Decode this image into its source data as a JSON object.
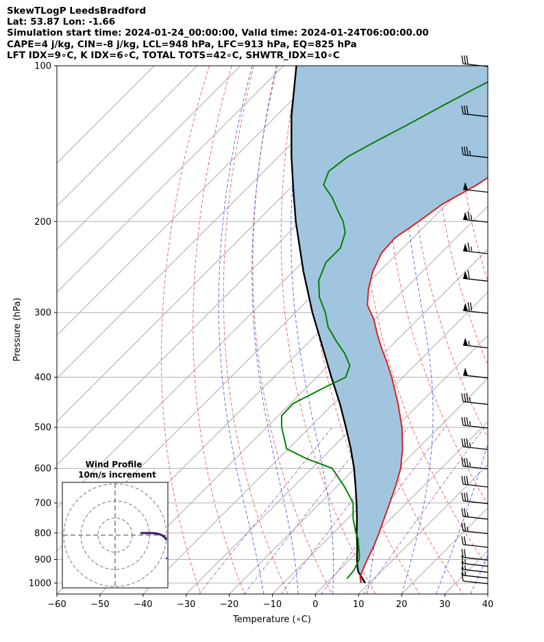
{
  "header": {
    "line1": "SkewTLogP LeedsBradford",
    "line2": "Lat: 53.87   Lon: -1.66",
    "line3": "Simulation start time: 2024-01-24_00:00:00, Valid time: 2024-01-24T06:00:00.00",
    "line4": "CAPE=4 j/kg, CIN=-8 j/kg, LCL=948 hPa, LFC=913 hPa, EQ=825 hPa",
    "line5": "LFT IDX=9∘C, K IDX=6∘C, TOTAL TOTS=42∘C, SHWTR_IDX=10∘C"
  },
  "chart_data": {
    "type": "line",
    "subtype": "skew-t log-p diagram",
    "xlabel": "Temperature (∘C)",
    "ylabel": "Pressure (hPa)",
    "xlim": [
      -60,
      40
    ],
    "ylim_hpa": [
      1050,
      100
    ],
    "y_scale": "log",
    "x_ticks": [
      "−60",
      "−50",
      "−40",
      "−30",
      "−20",
      "−10",
      "0",
      "10",
      "20",
      "30",
      "40"
    ],
    "x_tick_values": [
      -60,
      -50,
      -40,
      -30,
      -20,
      -10,
      0,
      10,
      20,
      30,
      40
    ],
    "y_ticks": [
      "100",
      "200",
      "300",
      "400",
      "500",
      "600",
      "700",
      "800",
      "900",
      "1000"
    ],
    "y_tick_values": [
      100,
      200,
      300,
      400,
      500,
      600,
      700,
      800,
      900,
      1000
    ],
    "grid": true,
    "series": [
      {
        "role": "temperature",
        "color": "#e41a1c",
        "pressure": [
          1000,
          975,
          950,
          925,
          900,
          850,
          800,
          750,
          700,
          650,
          600,
          550,
          500,
          450,
          400,
          370,
          350,
          330,
          310,
          290,
          270,
          250,
          230,
          215,
          200,
          185,
          170,
          155,
          140,
          125,
          110,
          100
        ],
        "values": [
          8.0,
          6.5,
          5.6,
          4.8,
          4.0,
          2.5,
          0.6,
          -1.6,
          -3.9,
          -6.4,
          -9.4,
          -13.5,
          -18.6,
          -25.0,
          -32.6,
          -38.0,
          -42.0,
          -46.0,
          -50.0,
          -55.0,
          -58.5,
          -61.5,
          -63.8,
          -64.2,
          -62.5,
          -61.0,
          -57.5,
          -55.0,
          -52.5,
          -49.0,
          -45.5,
          -43.0
        ]
      },
      {
        "role": "dewpoint",
        "color": "#008000",
        "pressure": [
          980,
          960,
          940,
          920,
          900,
          880,
          850,
          820,
          800,
          750,
          700,
          650,
          600,
          575,
          550,
          500,
          475,
          450,
          420,
          400,
          380,
          360,
          340,
          320,
          300,
          280,
          260,
          240,
          225,
          210,
          200,
          190,
          180,
          170,
          160,
          150,
          140,
          130,
          120,
          110,
          100
        ],
        "values": [
          3.7,
          3.6,
          3.3,
          2.7,
          2.1,
          1.0,
          -1.0,
          -3.0,
          -4.8,
          -8.8,
          -12.4,
          -18.3,
          -25.3,
          -33.4,
          -40.4,
          -46.5,
          -49.2,
          -49.4,
          -46.0,
          -43.3,
          -45.0,
          -49.0,
          -54.0,
          -59.0,
          -63.0,
          -68.0,
          -72.0,
          -74.5,
          -74.5,
          -77.0,
          -80.0,
          -84.0,
          -88.0,
          -93.0,
          -95.0,
          -94.0,
          -91.0,
          -87.5,
          -84.0,
          -80.0,
          -75.0
        ]
      },
      {
        "role": "parcel",
        "color": "#000000",
        "pressure": [
          1000,
          975,
          950,
          925,
          900,
          850,
          800,
          750,
          700,
          650,
          600,
          550,
          500,
          450,
          400,
          350,
          300,
          250,
          200,
          175,
          150,
          125,
          100
        ],
        "values": [
          9.0,
          6.9,
          4.7,
          3.1,
          1.6,
          -1.3,
          -4.6,
          -7.9,
          -11.6,
          -15.7,
          -20.2,
          -25.5,
          -31.6,
          -38.5,
          -46.6,
          -55.6,
          -66.0,
          -77.6,
          -91.0,
          -98.5,
          -107.0,
          -116.5,
          -127.0
        ]
      }
    ],
    "wind_barbs": [
      {
        "pressure": 100,
        "speed_kt": 30
      },
      {
        "pressure": 125,
        "speed_kt": 30
      },
      {
        "pressure": 150,
        "speed_kt": 35
      },
      {
        "pressure": 175,
        "speed_kt": 50
      },
      {
        "pressure": 200,
        "speed_kt": 65
      },
      {
        "pressure": 230,
        "speed_kt": 65
      },
      {
        "pressure": 260,
        "speed_kt": 60
      },
      {
        "pressure": 300,
        "speed_kt": 70
      },
      {
        "pressure": 350,
        "speed_kt": 55
      },
      {
        "pressure": 400,
        "speed_kt": 50
      },
      {
        "pressure": 450,
        "speed_kt": 35
      },
      {
        "pressure": 500,
        "speed_kt": 35
      },
      {
        "pressure": 550,
        "speed_kt": 35
      },
      {
        "pressure": 600,
        "speed_kt": 35
      },
      {
        "pressure": 650,
        "speed_kt": 30
      },
      {
        "pressure": 700,
        "speed_kt": 30
      },
      {
        "pressure": 750,
        "speed_kt": 25
      },
      {
        "pressure": 800,
        "speed_kt": 25
      },
      {
        "pressure": 850,
        "speed_kt": 20
      },
      {
        "pressure": 900,
        "speed_kt": 20
      },
      {
        "pressure": 925,
        "speed_kt": 15
      },
      {
        "pressure": 950,
        "speed_kt": 15
      },
      {
        "pressure": 975,
        "speed_kt": 15
      },
      {
        "pressure": 1000,
        "speed_kt": 10
      }
    ],
    "inset": {
      "title_line1": "Wind Profile",
      "title_line2": "10m/s increment",
      "type": "hodograph"
    }
  }
}
